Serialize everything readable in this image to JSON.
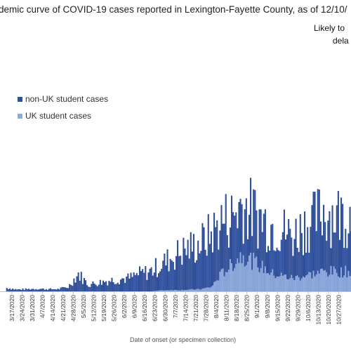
{
  "chart_data": {
    "type": "bar",
    "stacked": true,
    "title": "demic curve of COVID-19 cases reported in Lexington-Fayette County, as of 12/10/",
    "annotation_lines": [
      "Likely to",
      "dela"
    ],
    "xlabel": "Date of onset (or specimen collection)",
    "ylabel": "",
    "grid": false,
    "legend_position": "top-left",
    "colors": {
      "non_uk": "#2f4f9a",
      "uk": "#8ea9dc"
    },
    "series": [
      {
        "name": "non-UK student cases"
      },
      {
        "name": "UK student cases"
      }
    ],
    "x_tick_labels": [
      "3/17/2020",
      "3/24/2020",
      "3/31/2020",
      "4/7/2020",
      "4/14/2020",
      "4/21/2020",
      "4/28/2020",
      "5/5/2020",
      "5/12/2020",
      "5/19/2020",
      "5/26/2020",
      "6/2/2020",
      "6/9/2020",
      "6/16/2020",
      "6/23/2020",
      "6/30/2020",
      "7/7/2020",
      "7/14/2020",
      "7/21/2020",
      "7/28/2020",
      "8/4/2020",
      "8/11/2020",
      "8/18/2020",
      "8/25/2020",
      "9/1/2020",
      "9/8/2020",
      "9/15/2020",
      "9/22/2020",
      "9/29/2020",
      "10/6/2020",
      "10/13/2020",
      "10/20/2020",
      "10/27/2020"
    ],
    "weekly_totals": [
      8,
      4,
      5,
      6,
      5,
      5,
      10,
      40,
      15,
      20,
      25,
      28,
      30,
      40,
      45,
      60,
      75,
      90,
      100,
      110,
      130,
      160,
      170,
      200,
      180,
      165,
      150,
      140,
      125,
      150,
      160,
      185,
      175
    ],
    "weekly_uk": [
      0,
      0,
      0,
      0,
      0,
      0,
      0,
      0,
      0,
      0,
      0,
      0,
      0,
      0,
      0,
      2,
      3,
      3,
      4,
      5,
      10,
      40,
      60,
      85,
      70,
      55,
      40,
      35,
      30,
      35,
      40,
      45,
      45
    ],
    "peak_value": 200
  }
}
